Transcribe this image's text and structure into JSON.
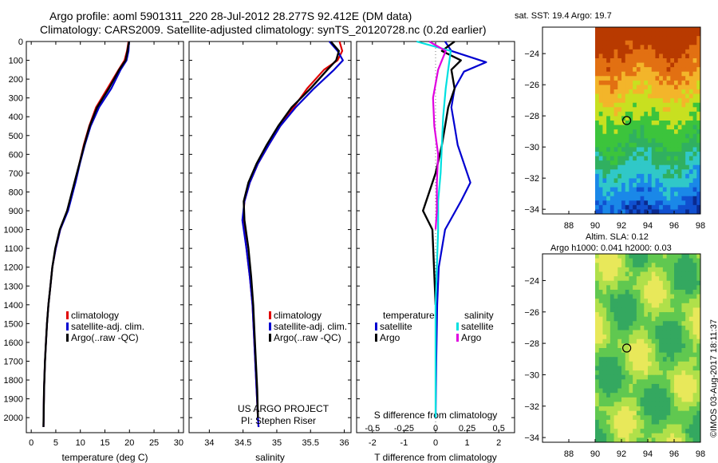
{
  "header": {
    "line1": "Argo profile: aoml 5901311_220 28-Jul-2012 28.277S 92.412E (DM data)",
    "line2": "Climatology: CARS2009. Satellite-adjusted climatology: synTS_20120728.nc (0.2d earlier)"
  },
  "side": {
    "sst_title": "sat. SST: 19.4  Argo: 19.7",
    "sla_title_1": "Altim. SLA: 0.12",
    "sla_title_2": "Argo h1000: 0.041  h2000: 0.03",
    "stamp": "©IMOS 03-Aug-2017 18:11:37"
  },
  "colors": {
    "climatology": "#e00000",
    "satellite": "#0000d0",
    "argo": "#000000",
    "s_satellite": "#00e0e0",
    "s_argo": "#e000e0"
  },
  "chart_data": [
    {
      "type": "line",
      "id": "temperature",
      "xlabel": "temperature (deg C)",
      "xlim": [
        -1,
        31
      ],
      "xticks": [
        0,
        5,
        10,
        15,
        20,
        25,
        30
      ],
      "ylim": [
        2080,
        0
      ],
      "yticks": [
        0,
        100,
        200,
        300,
        400,
        500,
        600,
        700,
        800,
        900,
        1000,
        1100,
        1200,
        1300,
        1400,
        1500,
        1600,
        1700,
        1800,
        1900,
        2000
      ],
      "legend": [
        "climatology",
        "satellite-adj. clim.",
        "Argo(..raw -QC)"
      ],
      "series": [
        {
          "name": "climatology",
          "color_key": "climatology",
          "x": [
            19.8,
            19.5,
            19.0,
            17.8,
            15.5,
            13.2,
            11.8,
            10.7,
            9.8,
            8.9,
            7.4,
            5.9,
            5.0,
            4.3,
            3.9,
            3.5,
            3.2,
            3.0,
            2.8,
            2.6,
            2.5
          ],
          "y": [
            0,
            50,
            100,
            150,
            250,
            350,
            450,
            550,
            650,
            750,
            900,
            1000,
            1100,
            1200,
            1300,
            1400,
            1500,
            1600,
            1700,
            1850,
            2050
          ]
        },
        {
          "name": "satellite-adj. clim.",
          "color_key": "satellite",
          "x": [
            19.9,
            19.8,
            19.4,
            18.2,
            16.3,
            13.8,
            12.1,
            10.9,
            9.9,
            9.0,
            7.5,
            5.9,
            5.0,
            4.3,
            3.9,
            3.5,
            3.2,
            3.0,
            2.8,
            2.6,
            2.5
          ],
          "y": [
            0,
            50,
            100,
            150,
            250,
            350,
            450,
            550,
            650,
            750,
            900,
            1000,
            1100,
            1200,
            1300,
            1400,
            1500,
            1600,
            1700,
            1850,
            2050
          ]
        },
        {
          "name": "Argo(..raw -QC)",
          "color_key": "argo",
          "x": [
            19.9,
            19.6,
            19.2,
            17.9,
            15.8,
            13.4,
            11.9,
            10.8,
            9.8,
            8.8,
            7.3,
            5.8,
            4.9,
            4.3,
            3.9,
            3.5,
            3.2,
            3.0,
            2.8,
            2.6,
            2.5
          ],
          "y": [
            0,
            50,
            100,
            150,
            250,
            350,
            450,
            550,
            650,
            750,
            900,
            1000,
            1100,
            1200,
            1300,
            1400,
            1500,
            1600,
            1700,
            1850,
            2050
          ]
        }
      ]
    },
    {
      "type": "line",
      "id": "salinity",
      "xlabel": "salinity",
      "xlim": [
        33.7,
        36.1
      ],
      "xticks": [
        34,
        34.5,
        35,
        35.5,
        36
      ],
      "xticklabels": [
        "34",
        "34.5",
        "35",
        "35.5",
        "36"
      ],
      "ylim": [
        2080,
        0
      ],
      "legend": [
        "climatology",
        "satellite-adj. clim.",
        "Argo(..raw -QC)"
      ],
      "annotations": [
        "US ARGO PROJECT",
        "PI: Stephen Riser"
      ],
      "series": [
        {
          "name": "climatology",
          "color_key": "climatology",
          "x": [
            35.93,
            35.97,
            35.9,
            35.7,
            35.45,
            35.25,
            35.05,
            34.88,
            34.72,
            34.6,
            34.52,
            34.5,
            34.55,
            34.6,
            34.64,
            34.66,
            34.68,
            34.7,
            34.72,
            34.73
          ],
          "y": [
            0,
            50,
            100,
            150,
            250,
            350,
            450,
            550,
            650,
            750,
            850,
            950,
            1100,
            1250,
            1400,
            1550,
            1700,
            1850,
            2000,
            2050
          ]
        },
        {
          "name": "satellite-adj. clim.",
          "color_key": "satellite",
          "x": [
            35.78,
            35.9,
            35.98,
            35.85,
            35.55,
            35.28,
            35.05,
            34.88,
            34.72,
            34.6,
            34.52,
            34.49,
            34.55,
            34.6,
            34.64,
            34.66,
            34.68,
            34.7,
            34.72,
            34.73
          ],
          "y": [
            0,
            50,
            100,
            150,
            250,
            350,
            450,
            550,
            650,
            750,
            850,
            950,
            1100,
            1250,
            1400,
            1550,
            1700,
            1850,
            2000,
            2050
          ]
        },
        {
          "name": "Argo(..raw -QC)",
          "color_key": "argo",
          "x": [
            35.8,
            35.92,
            35.88,
            35.75,
            35.5,
            35.22,
            35.02,
            34.85,
            34.7,
            34.58,
            34.51,
            34.52,
            34.58,
            34.62,
            34.65,
            34.67,
            34.69,
            34.71,
            34.72
          ],
          "y": [
            0,
            50,
            100,
            150,
            250,
            350,
            450,
            550,
            650,
            750,
            850,
            950,
            1100,
            1250,
            1400,
            1550,
            1700,
            1850,
            2000
          ]
        }
      ]
    },
    {
      "type": "line",
      "id": "difference",
      "xlabel": "T difference from climatology",
      "xlabel_top": "S difference from climatology",
      "xlim": [
        -2.5,
        2.5
      ],
      "xticks": [
        -2,
        -1,
        0,
        1,
        2
      ],
      "xticks_s": [
        -0.5,
        -0.25,
        0,
        0.25,
        0.5
      ],
      "xticklabels_s": [
        "-0.5",
        "-0.25",
        "0",
        "0.25",
        "0.5"
      ],
      "ylim": [
        2080,
        0
      ],
      "legend_headers": [
        "temperature",
        "salinity"
      ],
      "legend": [
        "satellite",
        "Argo",
        "satellite",
        "Argo"
      ],
      "series": [
        {
          "name": "satellite",
          "group": "temperature",
          "color_key": "satellite",
          "x": [
            0.3,
            0.5,
            1.6,
            0.9,
            0.6,
            0.5,
            0.6,
            0.7,
            0.9,
            1.1,
            0.8,
            0.3,
            0.1,
            0.05,
            0.02,
            0.0
          ],
          "y": [
            0,
            50,
            110,
            160,
            250,
            350,
            450,
            550,
            650,
            750,
            850,
            1000,
            1200,
            1400,
            1700,
            2000
          ]
        },
        {
          "name": "Argo",
          "group": "temperature",
          "color_key": "argo",
          "x": [
            0.6,
            0.2,
            0.8,
            0.5,
            0.6,
            0.4,
            0.3,
            0.2,
            0.0,
            -0.2,
            -0.4,
            -0.1,
            -0.05,
            0.0
          ],
          "y": [
            0,
            50,
            100,
            150,
            250,
            350,
            450,
            550,
            700,
            800,
            900,
            1000,
            1200,
            1400
          ]
        },
        {
          "name": "satellite",
          "group": "salinity",
          "color_key": "s_satellite",
          "x": [
            -0.15,
            0.12,
            0.1,
            0.08,
            0.06,
            0.05,
            0.04,
            0.02,
            0.02,
            0.0,
            0.0
          ],
          "y": [
            0,
            50,
            150,
            250,
            400,
            550,
            700,
            850,
            1000,
            1400,
            2000
          ]
        },
        {
          "name": "Argo",
          "group": "salinity",
          "color_key": "s_argo",
          "x": [
            -0.05,
            0.08,
            0.02,
            -0.02,
            -0.01,
            0.02,
            0.01,
            0.01,
            0.0
          ],
          "y": [
            0,
            50,
            150,
            300,
            450,
            600,
            750,
            900,
            1000
          ]
        }
      ]
    },
    {
      "type": "heatmap",
      "id": "sst_map",
      "title": "sat. SST: 19.4  Argo: 19.7",
      "xlim": [
        86,
        98
      ],
      "ylim": [
        -34.3,
        -22.3
      ],
      "xticks": [
        88,
        90,
        92,
        94,
        96,
        98
      ],
      "yticks": [
        -34,
        -32,
        -30,
        -28,
        -26,
        -24
      ],
      "data_xlim": [
        90,
        98
      ],
      "marker": {
        "x": 92.4,
        "y": -28.3
      }
    },
    {
      "type": "heatmap",
      "id": "sla_map",
      "title": "Altim. SLA: 0.12",
      "subtitle": "Argo h1000: 0.041  h2000: 0.03",
      "xlim": [
        86,
        98
      ],
      "ylim": [
        -34.3,
        -22.3
      ],
      "xticks": [
        88,
        90,
        92,
        94,
        96,
        98
      ],
      "yticks": [
        -34,
        -32,
        -30,
        -28,
        -26,
        -24
      ],
      "data_xlim": [
        90,
        98
      ],
      "marker": {
        "x": 92.4,
        "y": -28.3
      }
    }
  ]
}
